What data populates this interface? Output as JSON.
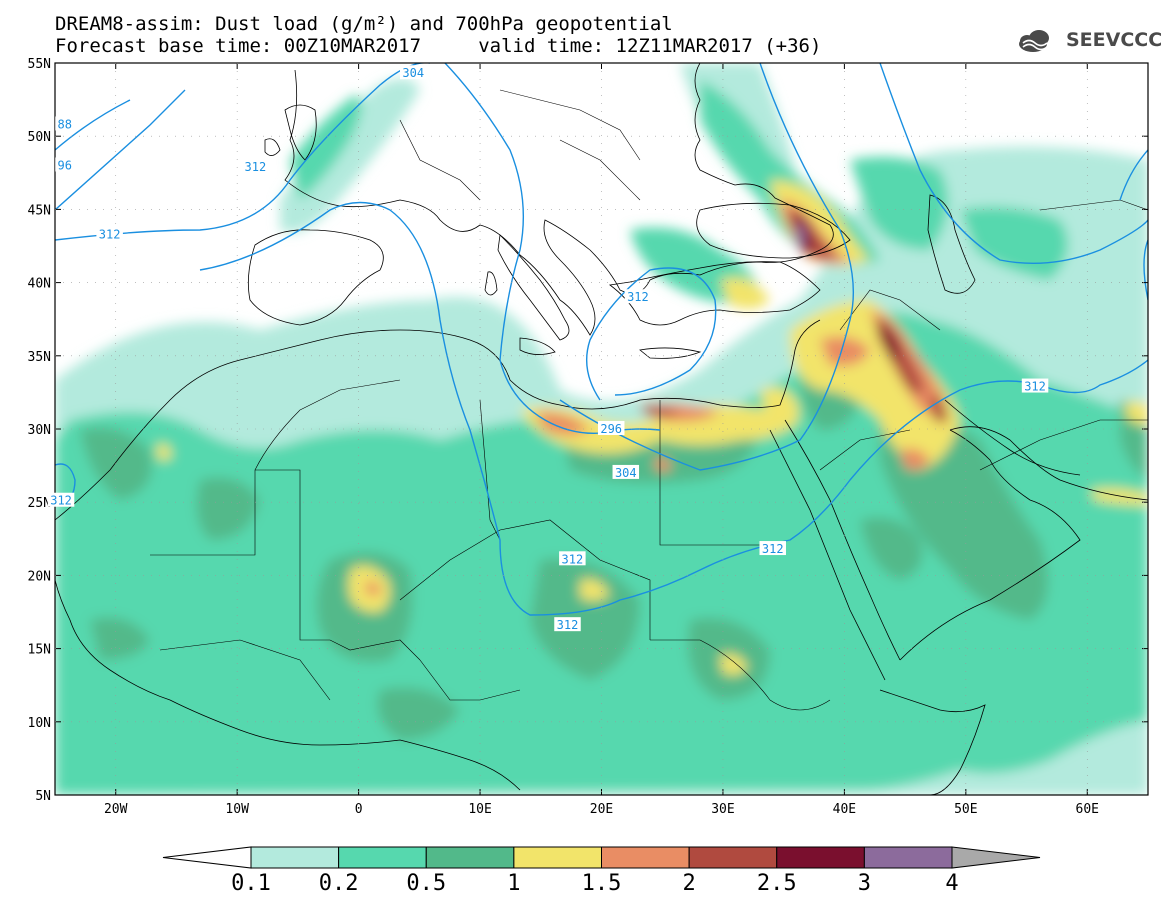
{
  "header": {
    "title_line1": "DREAM8-assim: Dust load (g/m²) and 700hPa geopotential",
    "title_line2": "Forecast base time: 00Z10MAR2017     valid time: 12Z11MAR2017 (+36)",
    "logo_text": "SEEVCCC"
  },
  "map": {
    "lon_range": [
      -25,
      65
    ],
    "lat_range": [
      5,
      55
    ],
    "lat_ticks": [
      {
        "value": 55,
        "label": "55N"
      },
      {
        "value": 50,
        "label": "50N"
      },
      {
        "value": 45,
        "label": "45N"
      },
      {
        "value": 40,
        "label": "40N"
      },
      {
        "value": 35,
        "label": "35N"
      },
      {
        "value": 30,
        "label": "30N"
      },
      {
        "value": 25,
        "label": "25N"
      },
      {
        "value": 20,
        "label": "20N"
      },
      {
        "value": 15,
        "label": "15N"
      },
      {
        "value": 10,
        "label": "10N"
      },
      {
        "value": 5,
        "label": "5N"
      }
    ],
    "lon_ticks": [
      {
        "value": -20,
        "label": "20W"
      },
      {
        "value": -10,
        "label": "10W"
      },
      {
        "value": 0,
        "label": "0"
      },
      {
        "value": 10,
        "label": "10E"
      },
      {
        "value": 20,
        "label": "20E"
      },
      {
        "value": 30,
        "label": "30E"
      },
      {
        "value": 40,
        "label": "40E"
      },
      {
        "value": 50,
        "label": "50E"
      },
      {
        "value": 60,
        "label": "60E"
      }
    ],
    "contour_labels": [
      {
        "text": "304",
        "lon": 22.0,
        "lat": 27.0
      },
      {
        "text": "296",
        "lon": 20.8,
        "lat": 30.0
      },
      {
        "text": "312",
        "lon": -20.5,
        "lat": 43.3
      },
      {
        "text": "312",
        "lon": -24.5,
        "lat": 25.1
      },
      {
        "text": "312",
        "lon": -8.5,
        "lat": 47.9
      },
      {
        "text": "304",
        "lon": 4.5,
        "lat": 54.3
      },
      {
        "text": "88",
        "lon": -24.2,
        "lat": 50.8
      },
      {
        "text": "96",
        "lon": -24.2,
        "lat": 48.0
      },
      {
        "text": "312",
        "lon": 17.6,
        "lat": 21.1
      },
      {
        "text": "312",
        "lon": 17.2,
        "lat": 16.6
      },
      {
        "text": "312",
        "lon": 34.1,
        "lat": 21.8
      },
      {
        "text": "312",
        "lon": 55.7,
        "lat": 32.9
      },
      {
        "text": "312",
        "lon": 23.0,
        "lat": 39.0
      }
    ],
    "colors": {
      "contour": "#1a8fe0",
      "coast": "#000000",
      "land": "#ffffff"
    }
  },
  "colorbar": {
    "levels": [
      "0.1",
      "0.2",
      "0.5",
      "1",
      "1.5",
      "2",
      "2.5",
      "3",
      "4"
    ],
    "colors": [
      "#ffffff",
      "#b3eadd",
      "#56d8ae",
      "#52b98a",
      "#f2e46a",
      "#e98d64",
      "#b04a3f",
      "#7a0f2e",
      "#8c6b9c",
      "#a9a9a9"
    ]
  }
}
